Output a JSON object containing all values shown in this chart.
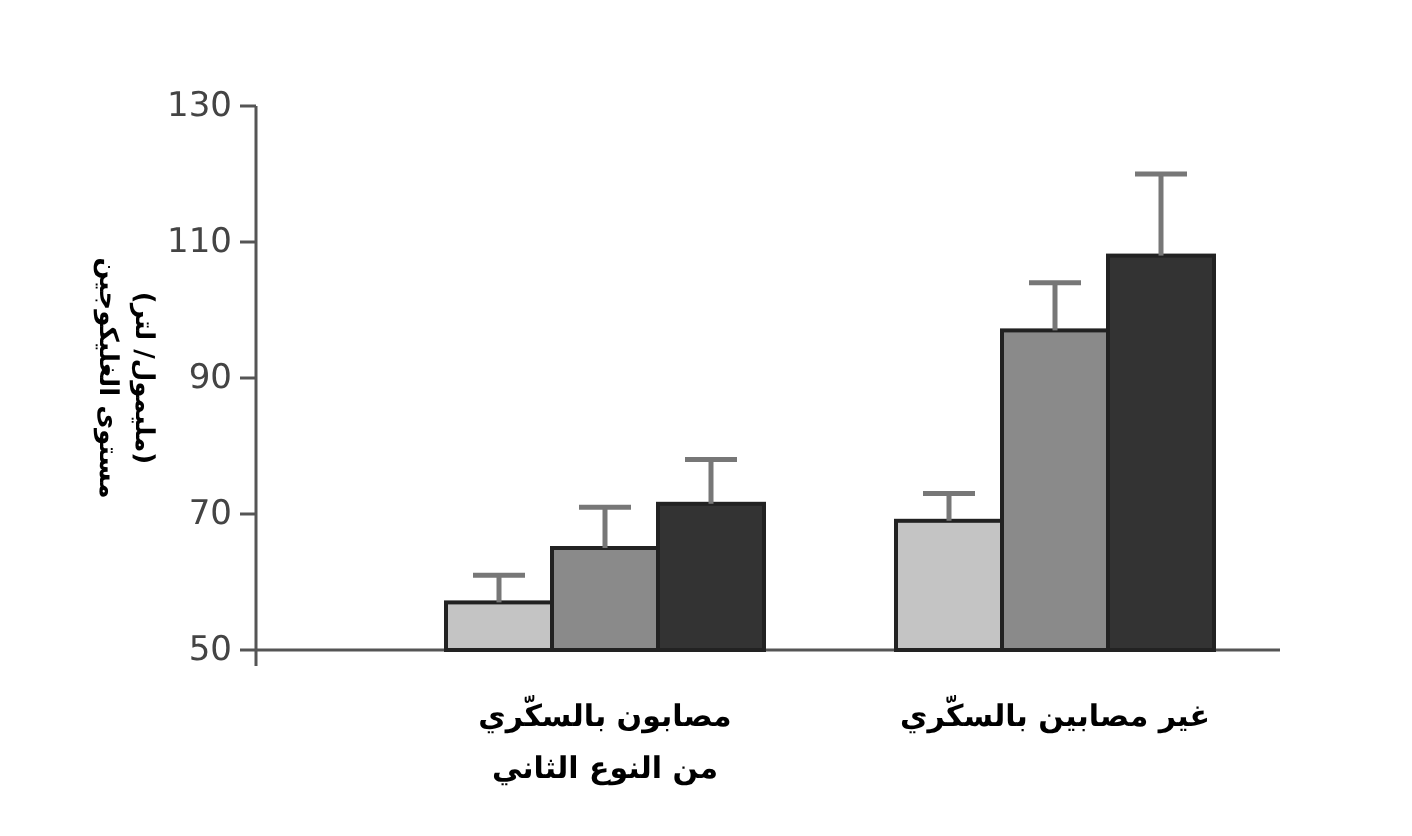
{
  "chart_data": {
    "type": "bar",
    "ylabel": "مستوى الغليكوجين\n(مليمول/ لتر)",
    "categories": [
      "مصابون بالسكّري\nمن النوع الثاني",
      "غير مصابين بالسكّري"
    ],
    "series": [
      {
        "color": "#c4c4c4",
        "values": [
          57,
          69
        ],
        "errors": [
          [
            57,
            61
          ],
          [
            69,
            73
          ]
        ]
      },
      {
        "color": "#8a8a8a",
        "values": [
          65,
          97
        ],
        "errors": [
          [
            65,
            71
          ],
          [
            97,
            104
          ]
        ]
      },
      {
        "color": "#333333",
        "values": [
          71.5,
          108
        ],
        "errors": [
          [
            71.5,
            78
          ],
          [
            108,
            120
          ]
        ]
      }
    ],
    "ylim": [
      50,
      130
    ],
    "yticks": [
      50,
      70,
      90,
      110,
      130
    ],
    "grid": false
  }
}
